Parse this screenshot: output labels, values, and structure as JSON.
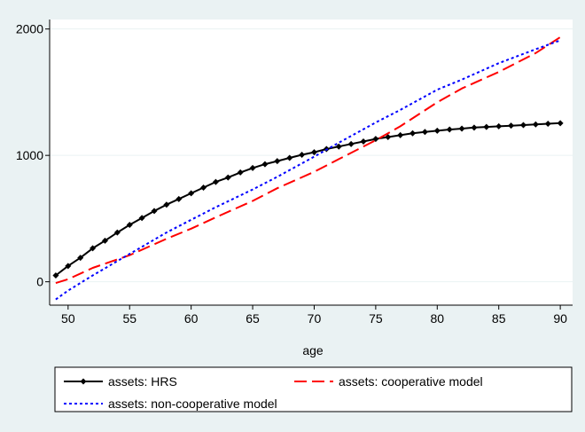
{
  "chart_data": {
    "type": "line",
    "title": "",
    "xlabel": "age",
    "ylabel": "",
    "xlim": [
      48.5,
      91
    ],
    "ylim": [
      -185,
      2075
    ],
    "xticks": [
      50,
      55,
      60,
      65,
      70,
      75,
      80,
      85,
      90
    ],
    "yticks": [
      0,
      1000,
      2000
    ],
    "grid": "horizontal",
    "legend_position": "bottom",
    "series": [
      {
        "name": "assets: HRS",
        "color": "#000000",
        "style": "solid",
        "marker": "diamond",
        "x": [
          49,
          50,
          51,
          52,
          53,
          54,
          55,
          56,
          57,
          58,
          59,
          60,
          61,
          62,
          63,
          64,
          65,
          66,
          67,
          68,
          69,
          70,
          71,
          72,
          73,
          74,
          75,
          76,
          77,
          78,
          79,
          80,
          81,
          82,
          83,
          84,
          85,
          86,
          87,
          88,
          89,
          90
        ],
        "y": [
          50,
          125,
          190,
          265,
          325,
          390,
          450,
          505,
          560,
          610,
          655,
          700,
          745,
          790,
          825,
          865,
          900,
          930,
          955,
          980,
          1005,
          1025,
          1050,
          1070,
          1090,
          1110,
          1130,
          1145,
          1160,
          1175,
          1185,
          1195,
          1205,
          1212,
          1220,
          1225,
          1230,
          1235,
          1240,
          1245,
          1250,
          1255
        ]
      },
      {
        "name": "assets: cooperative model",
        "color": "#ff0000",
        "style": "longdash",
        "x": [
          49,
          50,
          52,
          55,
          58,
          60,
          62,
          65,
          67,
          70,
          72,
          75,
          77,
          80,
          82,
          85,
          88,
          90
        ],
        "y": [
          -10,
          20,
          110,
          210,
          340,
          420,
          510,
          640,
          740,
          870,
          970,
          1120,
          1230,
          1420,
          1530,
          1660,
          1810,
          1935
        ]
      },
      {
        "name": "assets: non-cooperative model",
        "color": "#0000ff",
        "style": "dot",
        "x": [
          49,
          50,
          52,
          55,
          58,
          60,
          62,
          65,
          67,
          70,
          72,
          75,
          77,
          80,
          82,
          85,
          88,
          90
        ],
        "y": [
          -140,
          -70,
          50,
          220,
          390,
          490,
          590,
          730,
          830,
          990,
          1100,
          1260,
          1360,
          1520,
          1600,
          1730,
          1840,
          1910
        ]
      }
    ]
  }
}
